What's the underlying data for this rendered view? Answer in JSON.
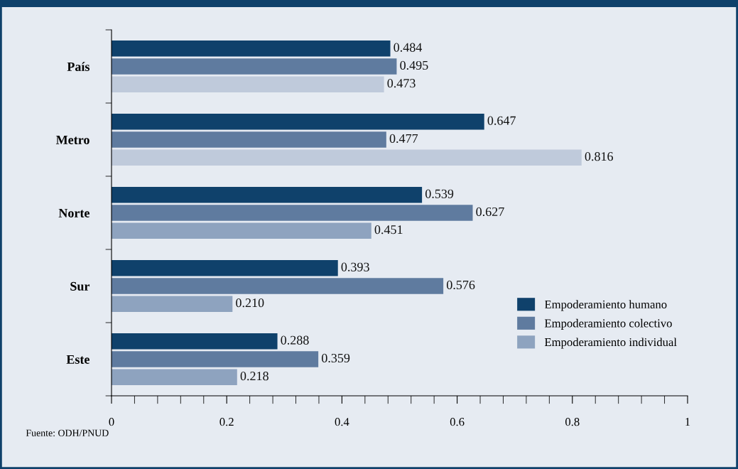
{
  "chart_data": {
    "type": "bar",
    "orientation": "horizontal",
    "categories": [
      "País",
      "Metro",
      "Norte",
      "Sur",
      "Este"
    ],
    "series": [
      {
        "name": "Empoderamiento humano",
        "color": "#0f416b",
        "values": [
          0.484,
          0.647,
          0.539,
          0.393,
          0.288
        ]
      },
      {
        "name": "Empoderamiento colectivo",
        "color": "#5f7b9f",
        "values": [
          0.495,
          0.477,
          0.627,
          0.576,
          0.359
        ]
      },
      {
        "name": "Empoderamiento individual",
        "color": "#8ea3bf",
        "colors": [
          "#bfcadb",
          "#bfcadb",
          "#8ea3bf",
          "#8ea3bf",
          "#8ea3bf"
        ],
        "values": [
          0.473,
          0.816,
          0.451,
          0.21,
          0.218
        ]
      }
    ],
    "xlim": [
      0,
      1
    ],
    "xticks": [
      0,
      {
        "value": 0.04,
        "label": null
      },
      {
        "value": 0.08,
        "label": null
      },
      {
        "value": 0.12,
        "label": null
      },
      {
        "value": 0.16,
        "label": null
      },
      0.2,
      {
        "value": 0.24,
        "label": null
      },
      {
        "value": 0.28,
        "label": null
      },
      {
        "value": 0.32,
        "label": null
      },
      {
        "value": 0.36,
        "label": null
      },
      0.4,
      {
        "value": 0.44,
        "label": null
      },
      {
        "value": 0.48,
        "label": null
      },
      {
        "value": 0.52,
        "label": null
      },
      {
        "value": 0.56,
        "label": null
      },
      0.6,
      {
        "value": 0.64,
        "label": null
      },
      {
        "value": 0.68,
        "label": null
      },
      {
        "value": 0.72,
        "label": null
      },
      {
        "value": 0.76,
        "label": null
      },
      0.8,
      {
        "value": 0.84,
        "label": null
      },
      {
        "value": 0.88,
        "label": null
      },
      {
        "value": 0.92,
        "label": null
      },
      {
        "value": 0.96,
        "label": null
      },
      1
    ],
    "value_labels": [
      [
        "0.484",
        "0.647",
        "0.539",
        "0.393",
        "0.288"
      ],
      [
        "0.495",
        "0.477",
        "0.627",
        "0.576",
        "0.359"
      ],
      [
        "0.473",
        "0.816",
        "0.451",
        "0.210",
        "0.218"
      ]
    ],
    "legend": "bottom right",
    "grid": false,
    "annotations": [
      "Fuente: ODH/PNUD"
    ]
  }
}
